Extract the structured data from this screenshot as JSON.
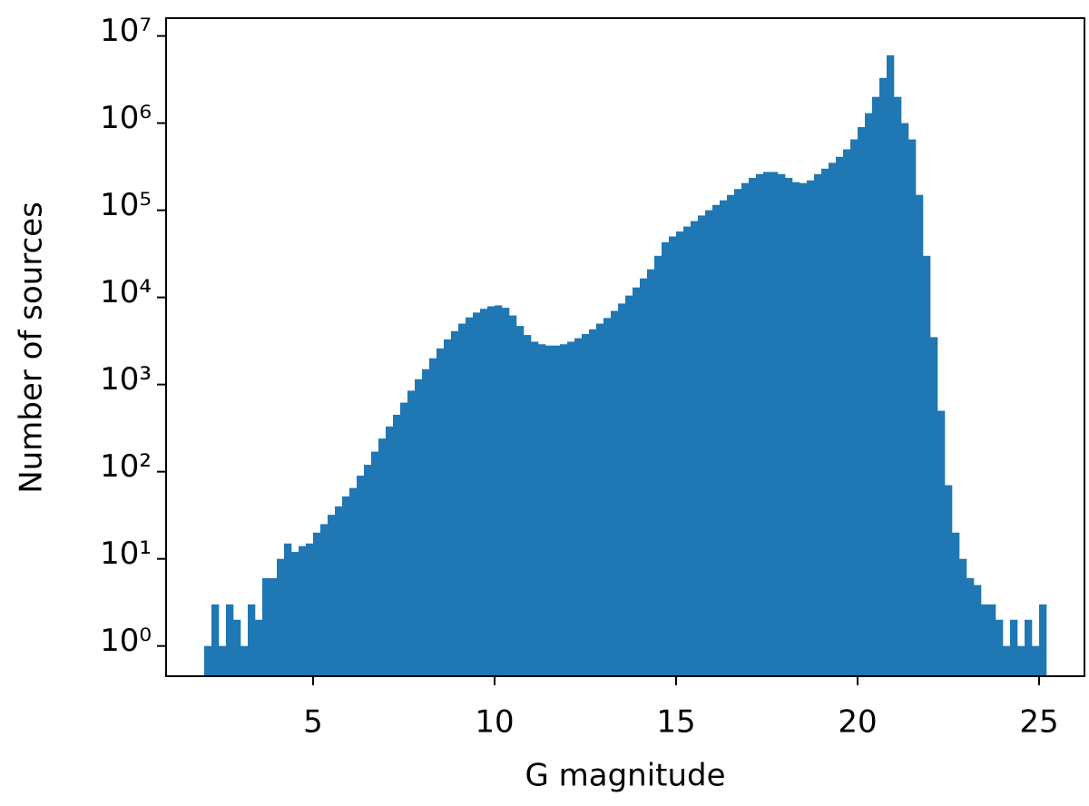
{
  "chart_data": {
    "type": "histogram",
    "xlabel": "G magnitude",
    "ylabel": "Number of sources",
    "color": "#1f77b4",
    "yscale": "log",
    "bins": [
      2,
      2.2,
      2.4,
      2.6,
      2.8,
      3,
      3.2,
      3.4,
      3.6,
      3.8,
      4,
      4.2,
      4.4,
      4.6,
      4.8,
      5,
      5.2,
      5.4,
      5.6,
      5.8,
      6,
      6.2,
      6.4,
      6.6,
      6.8,
      7,
      7.2,
      7.4,
      7.6,
      7.8,
      8,
      8.2,
      8.4,
      8.6,
      8.8,
      9,
      9.2,
      9.4,
      9.6,
      9.8,
      10,
      10.2,
      10.4,
      10.6,
      10.8,
      11,
      11.2,
      11.4,
      11.6,
      11.8,
      12,
      12.2,
      12.4,
      12.6,
      12.8,
      13,
      13.2,
      13.4,
      13.6,
      13.8,
      14,
      14.2,
      14.4,
      14.6,
      14.8,
      15,
      15.2,
      15.4,
      15.6,
      15.8,
      16,
      16.2,
      16.4,
      16.6,
      16.8,
      17,
      17.2,
      17.4,
      17.6,
      17.8,
      18,
      18.2,
      18.4,
      18.6,
      18.8,
      19,
      19.2,
      19.4,
      19.6,
      19.8,
      20,
      20.2,
      20.4,
      20.6,
      20.8,
      21,
      21.2,
      21.4,
      21.6,
      21.8,
      22,
      22.2,
      22.4,
      22.6,
      22.8,
      23,
      23.2,
      23.4,
      23.6,
      23.8,
      24,
      24.2,
      24.4,
      24.6,
      24.8,
      25,
      25.2
    ],
    "counts": [
      1,
      3,
      1,
      3,
      2,
      1,
      3,
      2,
      6,
      6,
      10,
      15,
      12,
      14,
      15,
      20,
      25,
      32,
      40,
      52,
      65,
      90,
      120,
      170,
      240,
      330,
      450,
      620,
      850,
      1150,
      1500,
      2000,
      2600,
      3300,
      4100,
      5000,
      5900,
      6700,
      7400,
      7900,
      8100,
      7600,
      6200,
      4700,
      3700,
      3100,
      2900,
      2800,
      2800,
      2900,
      3100,
      3400,
      3800,
      4300,
      5000,
      5800,
      7000,
      8500,
      10500,
      13000,
      16500,
      21000,
      30000,
      43000,
      50000,
      57000,
      65000,
      75000,
      87000,
      100000,
      115000,
      130000,
      150000,
      175000,
      205000,
      235000,
      260000,
      275000,
      275000,
      260000,
      235000,
      210000,
      205000,
      220000,
      260000,
      300000,
      350000,
      410000,
      500000,
      650000,
      900000,
      1300000,
      2000000,
      3300000,
      6000000,
      2000000,
      1000000,
      650000,
      150000,
      30000,
      3500,
      500,
      70,
      20,
      10,
      6,
      5,
      3,
      3,
      2,
      1,
      2,
      1,
      2,
      1,
      3
    ],
    "xlim": [
      0.95,
      26.25
    ],
    "ylim": [
      0.45,
      16000000
    ],
    "xticks": [
      5,
      10,
      15,
      20,
      25
    ],
    "yticks": [
      {
        "value": 1,
        "label": "10⁰"
      },
      {
        "value": 10,
        "label": "10¹"
      },
      {
        "value": 100,
        "label": "10²"
      },
      {
        "value": 1000,
        "label": "10³"
      },
      {
        "value": 10000,
        "label": "10⁴"
      },
      {
        "value": 100000,
        "label": "10⁵"
      },
      {
        "value": 1000000,
        "label": "10⁶"
      },
      {
        "value": 10000000,
        "label": "10⁷"
      }
    ]
  }
}
